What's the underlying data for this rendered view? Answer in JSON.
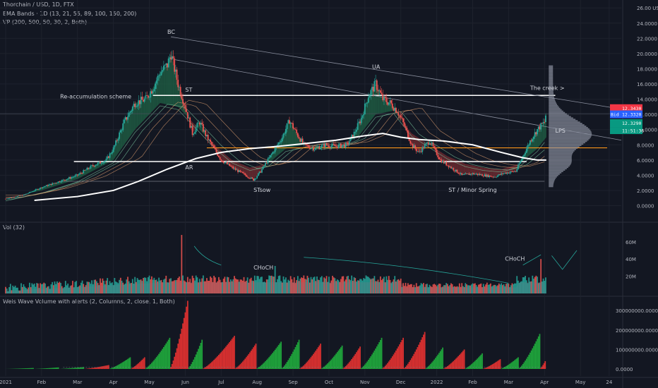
{
  "header": {
    "symbol_line": "Thorchain / USD, 1D, FTX",
    "ema_line": "EMA Bands · 1D (13, 21, 55, 89, 100, 150, 200)",
    "vp_line": "VP (200, 500, 50, 30, 2, Both)",
    "vol_title": "Vol (32)",
    "weis_title": "Weis Wave Volume with alerts (2, Columns, 2, close, 1, Both)"
  },
  "price_axis": {
    "labels": [
      "26.00 USD",
      "24.0000",
      "22.0000",
      "20.0000",
      "18.0000",
      "16.0000",
      "14.0000",
      "12.0000",
      "10.0000",
      "8.0000",
      "6.0000",
      "4.0000",
      "2.0000",
      "0.0000"
    ],
    "values": [
      26,
      24,
      22,
      20,
      18,
      16,
      14,
      12,
      10,
      8,
      6,
      4,
      2,
      0
    ],
    "tags": {
      "ask_label": "12.3430",
      "bid_prefix": "Bid",
      "bid_label": "12.3320",
      "last_label": "12.3290",
      "countdown": "11:51:36",
      "colors": {
        "ask": "#f23645",
        "bid": "#2962ff",
        "last": "#089981"
      }
    }
  },
  "vol_axis": {
    "labels": [
      "60M",
      "40M",
      "20M"
    ],
    "values": [
      60,
      40,
      20
    ]
  },
  "weis_axis": {
    "labels": [
      "300000000.0000",
      "200000000.0000",
      "100000000.0000",
      "0.0000"
    ],
    "values": [
      300,
      200,
      100,
      0
    ]
  },
  "time_axis": [
    "2021",
    "Feb",
    "Mar",
    "Apr",
    "May",
    "Jun",
    "Jul",
    "Aug",
    "Sep",
    "Oct",
    "Nov",
    "Dec",
    "2022",
    "Feb",
    "Mar",
    "Apr",
    "May",
    "24"
  ],
  "annotations": {
    "bc": "BC",
    "st": "ST",
    "ar": "AR",
    "stsow": "STsow",
    "ua": "UA",
    "st_spring": "ST / Minor Spring",
    "lps": "LPS",
    "creek": "The creek >",
    "reaccum": "Re-accumulation scheme",
    "choch1": "CHoCH",
    "choch2": "CHoCH"
  },
  "chart_data": [
    {
      "type": "candlestick",
      "name": "price",
      "x_unit": "month index (0 = Jan 2021)",
      "ylim": [
        -1,
        26
      ],
      "grid": true,
      "close_path": [
        [
          0.0,
          0.9
        ],
        [
          0.5,
          1.4
        ],
        [
          1.0,
          2.4
        ],
        [
          1.5,
          3.2
        ],
        [
          2.0,
          4.0
        ],
        [
          2.4,
          5.2
        ],
        [
          2.8,
          6.0
        ],
        [
          3.0,
          7.5
        ],
        [
          3.3,
          11.0
        ],
        [
          3.6,
          13.5
        ],
        [
          3.9,
          14.0
        ],
        [
          4.1,
          15.5
        ],
        [
          4.3,
          17.5
        ],
        [
          4.5,
          18.5
        ],
        [
          4.6,
          20.0
        ],
        [
          4.8,
          16.0
        ],
        [
          5.0,
          13.0
        ],
        [
          5.2,
          9.5
        ],
        [
          5.4,
          11.0
        ],
        [
          5.6,
          9.0
        ],
        [
          5.8,
          7.5
        ],
        [
          6.0,
          6.0
        ],
        [
          6.3,
          5.0
        ],
        [
          6.6,
          4.2
        ],
        [
          6.9,
          3.4
        ],
        [
          7.1,
          4.5
        ],
        [
          7.3,
          6.0
        ],
        [
          7.5,
          7.5
        ],
        [
          7.7,
          9.0
        ],
        [
          7.9,
          11.2
        ],
        [
          8.1,
          9.5
        ],
        [
          8.3,
          8.0
        ],
        [
          8.6,
          7.5
        ],
        [
          8.9,
          8.0
        ],
        [
          9.2,
          7.8
        ],
        [
          9.5,
          8.0
        ],
        [
          9.7,
          9.5
        ],
        [
          9.9,
          11.5
        ],
        [
          10.1,
          14.5
        ],
        [
          10.3,
          16.0
        ],
        [
          10.5,
          14.0
        ],
        [
          10.7,
          13.5
        ],
        [
          10.9,
          12.5
        ],
        [
          11.1,
          10.5
        ],
        [
          11.3,
          8.0
        ],
        [
          11.5,
          7.0
        ],
        [
          11.8,
          8.5
        ],
        [
          12.1,
          6.0
        ],
        [
          12.4,
          5.0
        ],
        [
          12.7,
          4.0
        ],
        [
          13.0,
          4.2
        ],
        [
          13.3,
          4.0
        ],
        [
          13.6,
          3.8
        ],
        [
          13.9,
          4.3
        ],
        [
          14.2,
          4.5
        ],
        [
          14.4,
          6.5
        ],
        [
          14.6,
          8.5
        ],
        [
          14.8,
          10.0
        ],
        [
          15.0,
          11.0
        ],
        [
          15.05,
          12.33
        ]
      ],
      "ema_band_path": [
        [
          0.0,
          1.0
        ],
        [
          1.0,
          2.0
        ],
        [
          2.0,
          3.5
        ],
        [
          3.0,
          6.0
        ],
        [
          3.6,
          10.0
        ],
        [
          4.3,
          13.5
        ],
        [
          4.8,
          13.0
        ],
        [
          5.3,
          10.5
        ],
        [
          5.8,
          8.0
        ],
        [
          6.3,
          6.0
        ],
        [
          6.8,
          5.0
        ],
        [
          7.3,
          5.5
        ],
        [
          7.8,
          7.5
        ],
        [
          8.3,
          8.0
        ],
        [
          8.8,
          7.8
        ],
        [
          9.3,
          8.0
        ],
        [
          9.8,
          9.0
        ],
        [
          10.3,
          12.0
        ],
        [
          10.8,
          12.5
        ],
        [
          11.3,
          9.5
        ],
        [
          11.8,
          8.0
        ],
        [
          12.3,
          6.5
        ],
        [
          12.8,
          5.5
        ],
        [
          13.3,
          5.0
        ],
        [
          13.8,
          4.8
        ],
        [
          14.3,
          5.5
        ],
        [
          14.8,
          7.5
        ],
        [
          15.05,
          9.0
        ]
      ],
      "ema200_path": [
        [
          0.8,
          0.7
        ],
        [
          2.0,
          1.2
        ],
        [
          3.0,
          2.0
        ],
        [
          3.7,
          3.2
        ],
        [
          4.5,
          4.8
        ],
        [
          5.3,
          6.2
        ],
        [
          6.0,
          7.0
        ],
        [
          6.8,
          7.5
        ],
        [
          7.6,
          7.8
        ],
        [
          8.4,
          8.2
        ],
        [
          9.2,
          8.6
        ],
        [
          10.0,
          9.2
        ],
        [
          10.5,
          9.5
        ],
        [
          11.0,
          9.0
        ],
        [
          11.5,
          8.7
        ],
        [
          12.2,
          8.5
        ],
        [
          13.0,
          8.0
        ],
        [
          13.8,
          7.0
        ],
        [
          14.4,
          6.3
        ],
        [
          14.8,
          6.0
        ],
        [
          15.05,
          6.0
        ]
      ],
      "levels": {
        "creek": 14.5,
        "upper_range": 5.8,
        "lower_range": 3.2,
        "poc": 7.6
      }
    },
    {
      "type": "bar",
      "name": "volume",
      "y_unit": "M",
      "ylim": [
        0,
        70
      ],
      "spikes": [
        {
          "x": 4.9,
          "y": 68
        },
        {
          "x": 7.5,
          "y": 32
        },
        {
          "x": 14.9,
          "y": 40
        }
      ]
    },
    {
      "type": "bar",
      "name": "weis_wave_volume",
      "y_unit": "×1,000,000",
      "ylim": [
        -10,
        330
      ],
      "waves": [
        {
          "x0": 0.0,
          "x1": 0.8,
          "peak": 5,
          "dir": "up"
        },
        {
          "x0": 0.8,
          "x1": 1.5,
          "peak": 8,
          "dir": "up"
        },
        {
          "x0": 1.5,
          "x1": 2.2,
          "peak": 10,
          "dir": "up"
        },
        {
          "x0": 2.2,
          "x1": 2.9,
          "peak": 20,
          "dir": "down"
        },
        {
          "x0": 2.9,
          "x1": 3.5,
          "peak": 60,
          "dir": "up"
        },
        {
          "x0": 3.5,
          "x1": 3.9,
          "peak": 60,
          "dir": "down"
        },
        {
          "x0": 3.9,
          "x1": 4.6,
          "peak": 160,
          "dir": "up"
        },
        {
          "x0": 4.6,
          "x1": 5.1,
          "peak": 350,
          "dir": "down"
        },
        {
          "x0": 5.1,
          "x1": 5.5,
          "peak": 150,
          "dir": "up"
        },
        {
          "x0": 5.5,
          "x1": 6.4,
          "peak": 170,
          "dir": "down"
        },
        {
          "x0": 6.4,
          "x1": 7.0,
          "peak": 130,
          "dir": "down"
        },
        {
          "x0": 7.0,
          "x1": 7.7,
          "peak": 140,
          "dir": "up"
        },
        {
          "x0": 7.7,
          "x1": 8.2,
          "peak": 150,
          "dir": "up"
        },
        {
          "x0": 8.2,
          "x1": 8.8,
          "peak": 130,
          "dir": "down"
        },
        {
          "x0": 8.8,
          "x1": 9.4,
          "peak": 120,
          "dir": "up"
        },
        {
          "x0": 9.4,
          "x1": 9.9,
          "peak": 115,
          "dir": "down"
        },
        {
          "x0": 9.9,
          "x1": 10.5,
          "peak": 160,
          "dir": "up"
        },
        {
          "x0": 10.5,
          "x1": 11.1,
          "peak": 160,
          "dir": "down"
        },
        {
          "x0": 11.1,
          "x1": 11.7,
          "peak": 190,
          "dir": "down"
        },
        {
          "x0": 11.7,
          "x1": 12.2,
          "peak": 110,
          "dir": "up"
        },
        {
          "x0": 12.2,
          "x1": 12.8,
          "peak": 100,
          "dir": "down"
        },
        {
          "x0": 12.8,
          "x1": 13.3,
          "peak": 80,
          "dir": "up"
        },
        {
          "x0": 13.3,
          "x1": 13.8,
          "peak": 50,
          "dir": "down"
        },
        {
          "x0": 13.8,
          "x1": 14.3,
          "peak": 60,
          "dir": "up"
        },
        {
          "x0": 14.3,
          "x1": 14.9,
          "peak": 180,
          "dir": "up"
        },
        {
          "x0": 14.9,
          "x1": 15.05,
          "peak": 40,
          "dir": "down"
        }
      ]
    }
  ],
  "colors": {
    "up": "#26a69a",
    "down": "#ef5350",
    "weis_up": "#1e9e3a",
    "weis_down": "#d32f2f",
    "band_up": "#1f5a42",
    "band_down": "#6a2a30",
    "ema200": "#ffffff",
    "poc": "#f7931a",
    "profile": "#8a8f9e"
  }
}
